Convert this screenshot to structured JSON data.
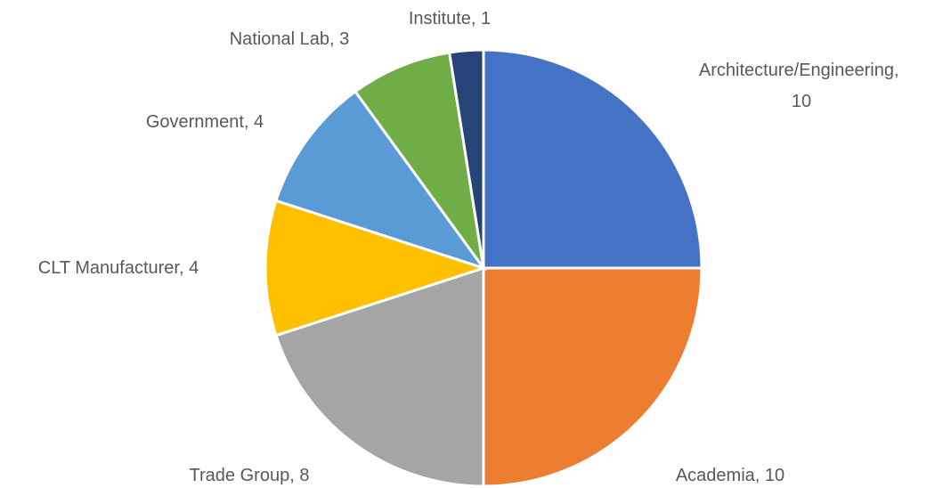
{
  "chart_data": {
    "type": "pie",
    "categories": [
      "Architecture/Engineering",
      "Academia",
      "Trade Group",
      "CLT Manufacturer",
      "Government",
      "National Lab",
      "Institute"
    ],
    "values": [
      10,
      10,
      8,
      4,
      4,
      3,
      1
    ],
    "label_separator": ", ",
    "colors": [
      "#4472c4",
      "#ed7d31",
      "#a5a5a5",
      "#ffc000",
      "#5b9bd5",
      "#70ad47",
      "#264478"
    ]
  }
}
